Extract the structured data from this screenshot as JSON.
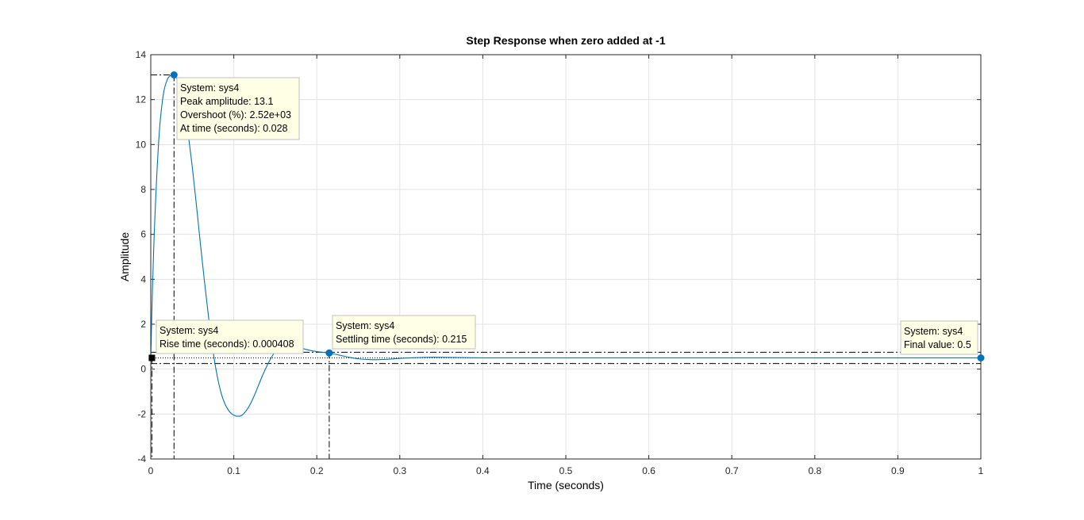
{
  "chart_data": {
    "type": "line",
    "title": "Step Response when zero added at -1",
    "xlabel": "Time (seconds)",
    "ylabel": "Amplitude",
    "xlim": [
      0,
      1
    ],
    "ylim": [
      -4,
      14
    ],
    "xticks": [
      "0",
      "0.1",
      "0.2",
      "0.3",
      "0.4",
      "0.5",
      "0.6",
      "0.7",
      "0.8",
      "0.9",
      "1"
    ],
    "yticks": [
      "-4",
      "-2",
      "0",
      "2",
      "4",
      "6",
      "8",
      "10",
      "12",
      "14"
    ],
    "grid": true,
    "line_color": "#0072bd",
    "series": [
      {
        "name": "sys4",
        "x": [
          0,
          0.002,
          0.005,
          0.01,
          0.015,
          0.02,
          0.025,
          0.028,
          0.032,
          0.035,
          0.04,
          0.045,
          0.05,
          0.055,
          0.06,
          0.065,
          0.07,
          0.075,
          0.08,
          0.085,
          0.09,
          0.095,
          0.1,
          0.105,
          0.11,
          0.115,
          0.12,
          0.125,
          0.13,
          0.135,
          0.14,
          0.145,
          0.15,
          0.155,
          0.16,
          0.165,
          0.17,
          0.175,
          0.18,
          0.185,
          0.19,
          0.195,
          0.2,
          0.21,
          0.215,
          0.22,
          0.23,
          0.24,
          0.25,
          0.26,
          0.27,
          0.28,
          0.29,
          0.3,
          0.32,
          0.34,
          0.36,
          0.38,
          0.4,
          0.45,
          0.5,
          0.6,
          0.7,
          0.8,
          0.9,
          1.0
        ],
        "y": [
          0.5,
          3.5,
          6.8,
          10.4,
          12.2,
          12.9,
          13.1,
          13.1,
          12.9,
          12.6,
          11.8,
          10.5,
          9.0,
          7.3,
          5.5,
          3.8,
          2.2,
          0.8,
          -0.3,
          -1.1,
          -1.6,
          -1.9,
          -2.05,
          -2.1,
          -2.05,
          -1.85,
          -1.55,
          -1.15,
          -0.7,
          -0.25,
          0.15,
          0.5,
          0.78,
          0.95,
          1.04,
          1.06,
          1.04,
          1.0,
          0.95,
          0.9,
          0.85,
          0.81,
          0.78,
          0.74,
          0.72,
          0.68,
          0.6,
          0.52,
          0.46,
          0.43,
          0.42,
          0.43,
          0.45,
          0.48,
          0.51,
          0.53,
          0.52,
          0.51,
          0.5,
          0.5,
          0.5,
          0.5,
          0.5,
          0.5,
          0.5,
          0.5
        ]
      }
    ],
    "annotations": [
      {
        "marker": [
          0.028,
          13.1
        ],
        "lines": [
          "System: sys4",
          "Peak amplitude: 13.1",
          "Overshoot (%): 2.52e+03",
          "At time (seconds): 0.028"
        ]
      },
      {
        "marker": [
          0.000408,
          0.5
        ],
        "lines": [
          "System: sys4",
          "Rise time (seconds): 0.000408"
        ]
      },
      {
        "marker": [
          0.215,
          0.72
        ],
        "lines": [
          "System: sys4",
          "Settling time (seconds): 0.215"
        ]
      },
      {
        "marker": [
          1.0,
          0.5
        ],
        "lines": [
          "System: sys4",
          "Final value: 0.5"
        ]
      }
    ],
    "reference_lines": {
      "peak_time": 0.028,
      "peak_value": 13.1,
      "settling_time": 0.215,
      "settling_upper": 0.75,
      "settling_lower": 0.25,
      "final_value": 0.5,
      "rise_time": 0.000408
    }
  }
}
